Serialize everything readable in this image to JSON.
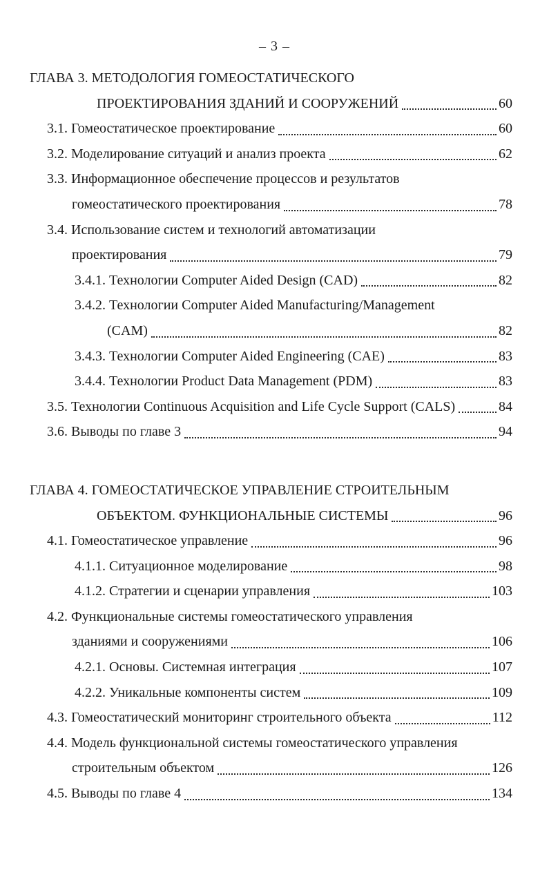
{
  "page": {
    "header": "– 3 –"
  },
  "toc": {
    "lines": [
      {
        "text": "ГЛАВА 3. МЕТОДОЛОГИЯ ГОМЕОСТАТИЧЕСКОГО",
        "indent": "chapter",
        "page": null
      },
      {
        "text": "ПРОЕКТИРОВАНИЯ ЗДАНИЙ И СООРУЖЕНИЙ",
        "indent": "chapter-cont",
        "page": "60"
      },
      {
        "text": "3.1. Гомеостатическое проектирование",
        "indent": "item",
        "page": "60"
      },
      {
        "text": "3.2. Моделирование ситуаций и анализ проекта",
        "indent": "item",
        "page": "62"
      },
      {
        "text": "3.3. Информационное обеспечение процессов и результатов",
        "indent": "item",
        "page": null
      },
      {
        "text": "гомеостатического проектирования",
        "indent": "item-cont",
        "page": "78"
      },
      {
        "text": "3.4. Использование систем и технологий автоматизации",
        "indent": "item",
        "page": null
      },
      {
        "text": "проектирования",
        "indent": "item-cont",
        "page": "79"
      },
      {
        "text": "3.4.1. Технологии Computer Aided Design (CAD)",
        "indent": "subitem",
        "page": "82"
      },
      {
        "text": "3.4.2. Технологии Computer Aided Manufacturing/Management",
        "indent": "subitem",
        "page": null
      },
      {
        "text": "(CAM)",
        "indent": "subitem-cont",
        "page": "82"
      },
      {
        "text": "3.4.3. Технологии Computer Aided Engineering (CAE)",
        "indent": "subitem",
        "page": "83"
      },
      {
        "text": "3.4.4. Технологии Product Data Management (PDM)",
        "indent": "subitem",
        "page": "83"
      },
      {
        "text": "3.5. Технологии Continuous Acquisition and Life Cycle Support (CALS)",
        "indent": "item",
        "page": "84"
      },
      {
        "text": "3.6. Выводы по главе 3",
        "indent": "item",
        "page": "94"
      },
      {
        "text": "ГЛАВА 4. ГОМЕОСТАТИЧЕСКОЕ УПРАВЛЕНИЕ СТРОИТЕЛЬНЫМ",
        "indent": "chapter",
        "page": null,
        "gap_before": true
      },
      {
        "text": "ОБЪЕКТОМ. ФУНКЦИОНАЛЬНЫЕ СИСТЕМЫ",
        "indent": "chapter-cont",
        "page": "96"
      },
      {
        "text": "4.1. Гомеостатическое управление",
        "indent": "item",
        "page": "96"
      },
      {
        "text": "4.1.1. Ситуационное моделирование",
        "indent": "subitem",
        "page": "98"
      },
      {
        "text": "4.1.2. Стратегии и сценарии управления",
        "indent": "subitem",
        "page": "103"
      },
      {
        "text": "4.2. Функциональные системы гомеостатического управления",
        "indent": "item",
        "page": null
      },
      {
        "text": "зданиями и сооружениями",
        "indent": "item-cont",
        "page": "106"
      },
      {
        "text": "4.2.1. Основы. Системная интеграция",
        "indent": "subitem",
        "page": "107"
      },
      {
        "text": "4.2.2. Уникальные компоненты систем",
        "indent": "subitem",
        "page": "109"
      },
      {
        "text": "4.3. Гомеостатический мониторинг строительного объекта",
        "indent": "item",
        "page": "112"
      },
      {
        "text": "4.4. Модель функциональной системы гомеостатического управления",
        "indent": "item",
        "page": null
      },
      {
        "text": "строительным объектом",
        "indent": "item-cont",
        "page": "126"
      },
      {
        "text": "4.5. Выводы по главе 4",
        "indent": "item",
        "page": "134"
      }
    ]
  }
}
